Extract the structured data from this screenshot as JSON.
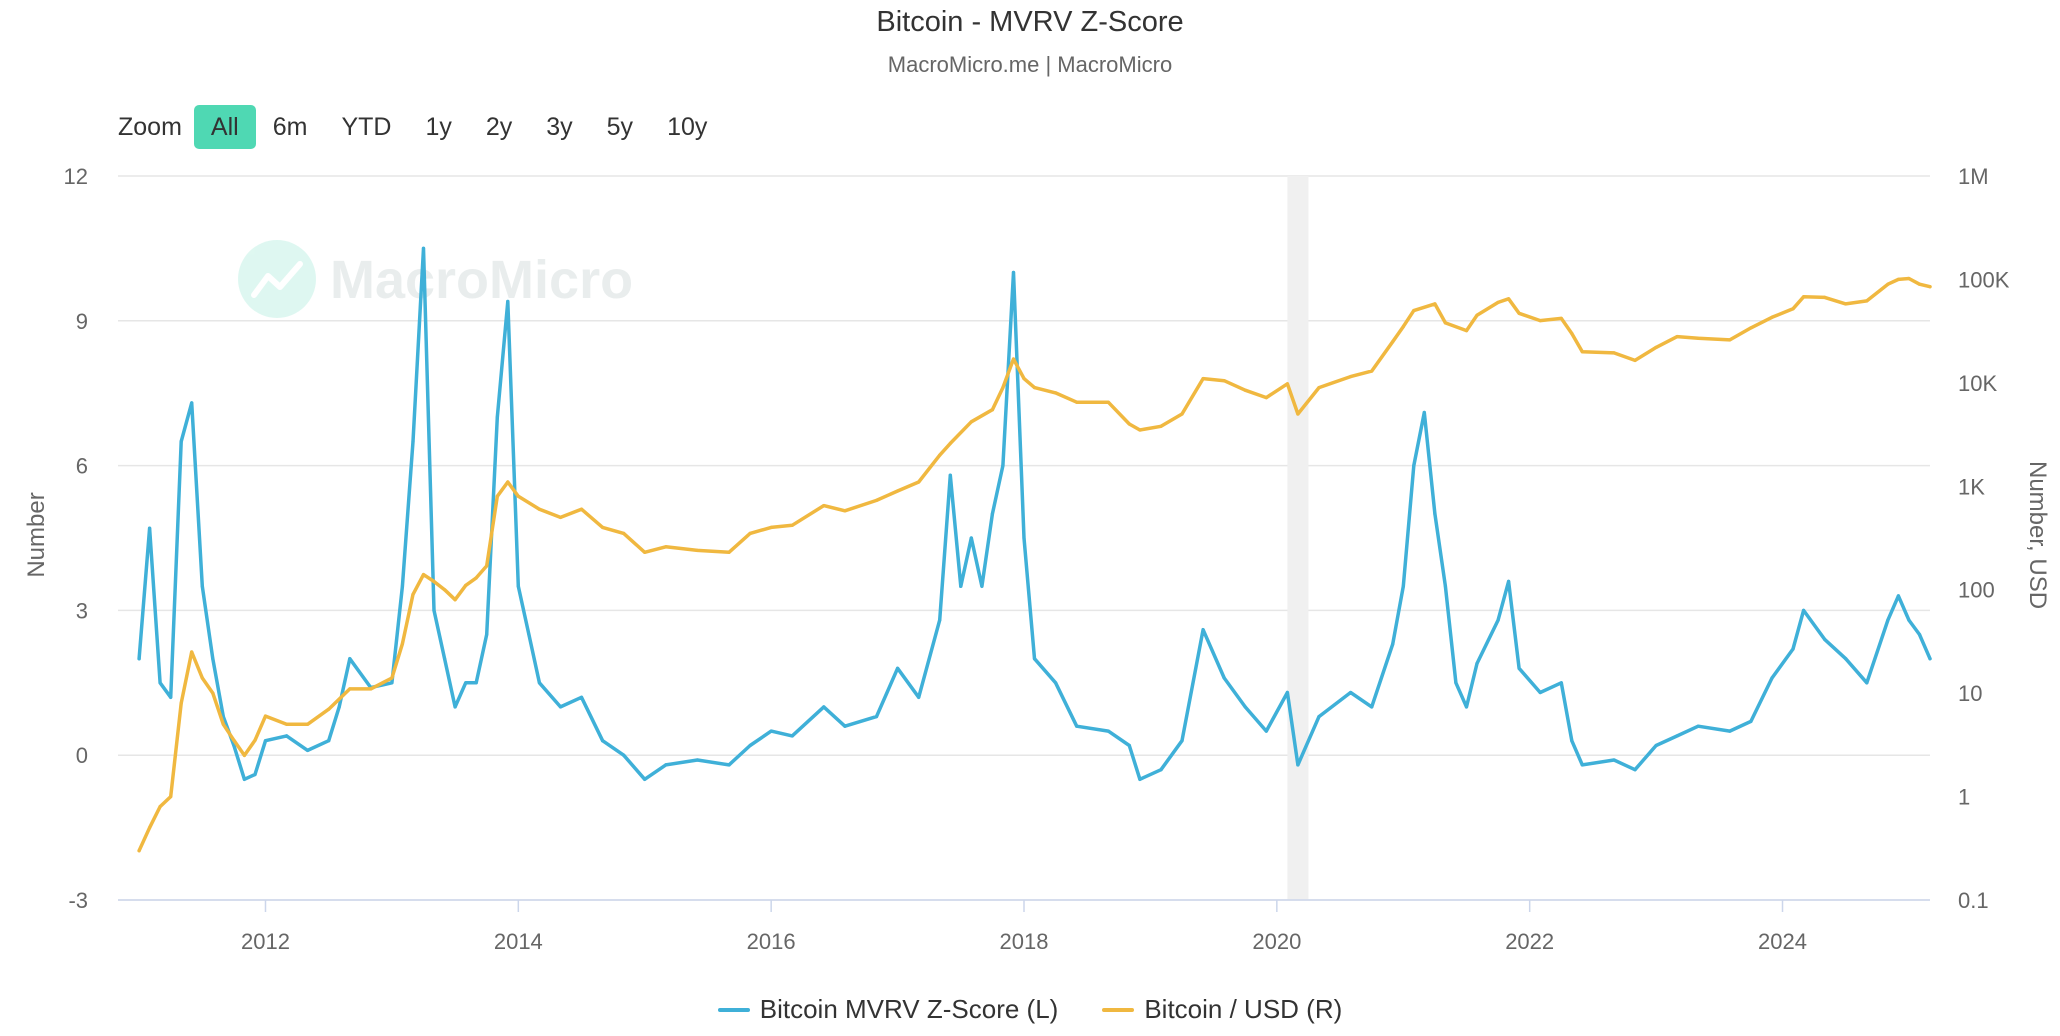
{
  "title": "Bitcoin - MVRV Z-Score",
  "subtitle": "MacroMicro.me | MacroMicro",
  "watermark": "MacroMicro",
  "zoom": {
    "label": "Zoom",
    "options": [
      "All",
      "6m",
      "YTD",
      "1y",
      "2y",
      "3y",
      "5y",
      "10y"
    ],
    "selected": "All"
  },
  "colors": {
    "mvrv": "#3fb0d8",
    "btc": "#f0b840",
    "grid": "#e6e6e6",
    "band": "#f0f0f0",
    "zoom_active": "#4fd8b3",
    "watermark": "#4fd8b3"
  },
  "chart_data": {
    "type": "line",
    "xlim": [
      "2010-11",
      "2025-03"
    ],
    "x_ticks": [
      "2012",
      "2014",
      "2016",
      "2018",
      "2020",
      "2022",
      "2024"
    ],
    "grid": true,
    "legend_position": "bottom",
    "y_left": {
      "label": "Number",
      "ylim": [
        -3,
        12
      ],
      "ticks": [
        "-3",
        "0",
        "3",
        "6",
        "9",
        "12"
      ]
    },
    "y_right": {
      "label": "Number, USD",
      "scale": "log",
      "ylim": [
        0.1,
        1000000
      ],
      "ticks": [
        "0.1",
        "1",
        "10",
        "100",
        "1K",
        "10K",
        "100K",
        "1M"
      ]
    },
    "shaded_band": {
      "x_start": "2020-02",
      "x_end": "2020-04"
    },
    "series": [
      {
        "name": "Bitcoin MVRV Z-Score (L)",
        "axis": "left",
        "points": [
          [
            "2011-01",
            2.0
          ],
          [
            "2011-02",
            4.7
          ],
          [
            "2011-03",
            1.5
          ],
          [
            "2011-04",
            1.2
          ],
          [
            "2011-05",
            6.5
          ],
          [
            "2011-06",
            7.3
          ],
          [
            "2011-07",
            3.5
          ],
          [
            "2011-08",
            2.0
          ],
          [
            "2011-09",
            0.8
          ],
          [
            "2011-10",
            0.2
          ],
          [
            "2011-11",
            -0.5
          ],
          [
            "2011-12",
            -0.4
          ],
          [
            "2012-01",
            0.3
          ],
          [
            "2012-03",
            0.4
          ],
          [
            "2012-05",
            0.1
          ],
          [
            "2012-07",
            0.3
          ],
          [
            "2012-08",
            1.0
          ],
          [
            "2012-09",
            2.0
          ],
          [
            "2012-11",
            1.4
          ],
          [
            "2013-01",
            1.5
          ],
          [
            "2013-02",
            3.5
          ],
          [
            "2013-03",
            6.5
          ],
          [
            "2013-04",
            10.5
          ],
          [
            "2013-05",
            3.0
          ],
          [
            "2013-06",
            2.0
          ],
          [
            "2013-07",
            1.0
          ],
          [
            "2013-08",
            1.5
          ],
          [
            "2013-09",
            1.5
          ],
          [
            "2013-10",
            2.5
          ],
          [
            "2013-11",
            7.0
          ],
          [
            "2013-12",
            9.4
          ],
          [
            "2014-01",
            3.5
          ],
          [
            "2014-02",
            2.5
          ],
          [
            "2014-03",
            1.5
          ],
          [
            "2014-05",
            1.0
          ],
          [
            "2014-07",
            1.2
          ],
          [
            "2014-09",
            0.3
          ],
          [
            "2014-11",
            0.0
          ],
          [
            "2015-01",
            -0.5
          ],
          [
            "2015-03",
            -0.2
          ],
          [
            "2015-06",
            -0.1
          ],
          [
            "2015-09",
            -0.2
          ],
          [
            "2015-11",
            0.2
          ],
          [
            "2016-01",
            0.5
          ],
          [
            "2016-03",
            0.4
          ],
          [
            "2016-06",
            1.0
          ],
          [
            "2016-08",
            0.6
          ],
          [
            "2016-11",
            0.8
          ],
          [
            "2017-01",
            1.8
          ],
          [
            "2017-03",
            1.2
          ],
          [
            "2017-05",
            2.8
          ],
          [
            "2017-06",
            5.8
          ],
          [
            "2017-07",
            3.5
          ],
          [
            "2017-08",
            4.5
          ],
          [
            "2017-09",
            3.5
          ],
          [
            "2017-10",
            5.0
          ],
          [
            "2017-11",
            6.0
          ],
          [
            "2017-12",
            10.0
          ],
          [
            "2018-01",
            4.5
          ],
          [
            "2018-02",
            2.0
          ],
          [
            "2018-04",
            1.5
          ],
          [
            "2018-06",
            0.6
          ],
          [
            "2018-09",
            0.5
          ],
          [
            "2018-11",
            0.2
          ],
          [
            "2018-12",
            -0.5
          ],
          [
            "2019-02",
            -0.3
          ],
          [
            "2019-04",
            0.3
          ],
          [
            "2019-06",
            2.6
          ],
          [
            "2019-08",
            1.6
          ],
          [
            "2019-10",
            1.0
          ],
          [
            "2019-12",
            0.5
          ],
          [
            "2020-02",
            1.3
          ],
          [
            "2020-03",
            -0.2
          ],
          [
            "2020-05",
            0.8
          ],
          [
            "2020-08",
            1.3
          ],
          [
            "2020-10",
            1.0
          ],
          [
            "2020-12",
            2.3
          ],
          [
            "2021-01",
            3.5
          ],
          [
            "2021-02",
            6.0
          ],
          [
            "2021-03",
            7.1
          ],
          [
            "2021-04",
            5.0
          ],
          [
            "2021-05",
            3.5
          ],
          [
            "2021-06",
            1.5
          ],
          [
            "2021-07",
            1.0
          ],
          [
            "2021-08",
            1.9
          ],
          [
            "2021-10",
            2.8
          ],
          [
            "2021-11",
            3.6
          ],
          [
            "2021-12",
            1.8
          ],
          [
            "2022-02",
            1.3
          ],
          [
            "2022-04",
            1.5
          ],
          [
            "2022-05",
            0.3
          ],
          [
            "2022-06",
            -0.2
          ],
          [
            "2022-09",
            -0.1
          ],
          [
            "2022-11",
            -0.3
          ],
          [
            "2023-01",
            0.2
          ],
          [
            "2023-03",
            0.4
          ],
          [
            "2023-05",
            0.6
          ],
          [
            "2023-08",
            0.5
          ],
          [
            "2023-10",
            0.7
          ],
          [
            "2023-12",
            1.6
          ],
          [
            "2024-02",
            2.2
          ],
          [
            "2024-03",
            3.0
          ],
          [
            "2024-05",
            2.4
          ],
          [
            "2024-07",
            2.0
          ],
          [
            "2024-09",
            1.5
          ],
          [
            "2024-11",
            2.8
          ],
          [
            "2024-12",
            3.3
          ],
          [
            "2025-01",
            2.8
          ],
          [
            "2025-02",
            2.5
          ],
          [
            "2025-03",
            2.0
          ]
        ]
      },
      {
        "name": "Bitcoin / USD (R)",
        "axis": "right",
        "points": [
          [
            "2011-01",
            0.3
          ],
          [
            "2011-02",
            0.5
          ],
          [
            "2011-03",
            0.8
          ],
          [
            "2011-04",
            1.0
          ],
          [
            "2011-05",
            8
          ],
          [
            "2011-06",
            25
          ],
          [
            "2011-07",
            14
          ],
          [
            "2011-08",
            10
          ],
          [
            "2011-09",
            5
          ],
          [
            "2011-10",
            3.5
          ],
          [
            "2011-11",
            2.5
          ],
          [
            "2011-12",
            3.5
          ],
          [
            "2012-01",
            6
          ],
          [
            "2012-03",
            5
          ],
          [
            "2012-05",
            5
          ],
          [
            "2012-07",
            7
          ],
          [
            "2012-09",
            11
          ],
          [
            "2012-11",
            11
          ],
          [
            "2013-01",
            14
          ],
          [
            "2013-02",
            30
          ],
          [
            "2013-03",
            90
          ],
          [
            "2013-04",
            140
          ],
          [
            "2013-05",
            120
          ],
          [
            "2013-06",
            100
          ],
          [
            "2013-07",
            80
          ],
          [
            "2013-08",
            110
          ],
          [
            "2013-09",
            130
          ],
          [
            "2013-10",
            170
          ],
          [
            "2013-11",
            800
          ],
          [
            "2013-12",
            1100
          ],
          [
            "2014-01",
            800
          ],
          [
            "2014-03",
            600
          ],
          [
            "2014-05",
            500
          ],
          [
            "2014-07",
            600
          ],
          [
            "2014-09",
            400
          ],
          [
            "2014-11",
            350
          ],
          [
            "2015-01",
            230
          ],
          [
            "2015-03",
            260
          ],
          [
            "2015-06",
            240
          ],
          [
            "2015-09",
            230
          ],
          [
            "2015-11",
            350
          ],
          [
            "2016-01",
            400
          ],
          [
            "2016-03",
            420
          ],
          [
            "2016-06",
            650
          ],
          [
            "2016-08",
            580
          ],
          [
            "2016-11",
            730
          ],
          [
            "2017-01",
            900
          ],
          [
            "2017-03",
            1100
          ],
          [
            "2017-05",
            2000
          ],
          [
            "2017-06",
            2600
          ],
          [
            "2017-08",
            4200
          ],
          [
            "2017-10",
            5500
          ],
          [
            "2017-11",
            9000
          ],
          [
            "2017-12",
            17000
          ],
          [
            "2018-01",
            11000
          ],
          [
            "2018-02",
            9000
          ],
          [
            "2018-04",
            8000
          ],
          [
            "2018-06",
            6500
          ],
          [
            "2018-09",
            6500
          ],
          [
            "2018-11",
            4000
          ],
          [
            "2018-12",
            3500
          ],
          [
            "2019-02",
            3800
          ],
          [
            "2019-04",
            5000
          ],
          [
            "2019-06",
            11000
          ],
          [
            "2019-08",
            10500
          ],
          [
            "2019-10",
            8500
          ],
          [
            "2019-12",
            7200
          ],
          [
            "2020-02",
            9800
          ],
          [
            "2020-03",
            5000
          ],
          [
            "2020-05",
            9000
          ],
          [
            "2020-08",
            11500
          ],
          [
            "2020-10",
            13000
          ],
          [
            "2020-12",
            25000
          ],
          [
            "2021-01",
            35000
          ],
          [
            "2021-02",
            50000
          ],
          [
            "2021-04",
            58000
          ],
          [
            "2021-05",
            38000
          ],
          [
            "2021-07",
            32000
          ],
          [
            "2021-08",
            45000
          ],
          [
            "2021-10",
            60000
          ],
          [
            "2021-11",
            65000
          ],
          [
            "2021-12",
            47000
          ],
          [
            "2022-02",
            40000
          ],
          [
            "2022-04",
            42000
          ],
          [
            "2022-05",
            30000
          ],
          [
            "2022-06",
            20000
          ],
          [
            "2022-09",
            19500
          ],
          [
            "2022-11",
            16500
          ],
          [
            "2023-01",
            22000
          ],
          [
            "2023-03",
            28000
          ],
          [
            "2023-05",
            27000
          ],
          [
            "2023-08",
            26000
          ],
          [
            "2023-10",
            34000
          ],
          [
            "2023-12",
            43000
          ],
          [
            "2024-02",
            52000
          ],
          [
            "2024-03",
            68000
          ],
          [
            "2024-05",
            67000
          ],
          [
            "2024-07",
            58000
          ],
          [
            "2024-09",
            62000
          ],
          [
            "2024-11",
            90000
          ],
          [
            "2024-12",
            100000
          ],
          [
            "2025-01",
            102000
          ],
          [
            "2025-02",
            90000
          ],
          [
            "2025-03",
            85000
          ]
        ]
      }
    ]
  }
}
